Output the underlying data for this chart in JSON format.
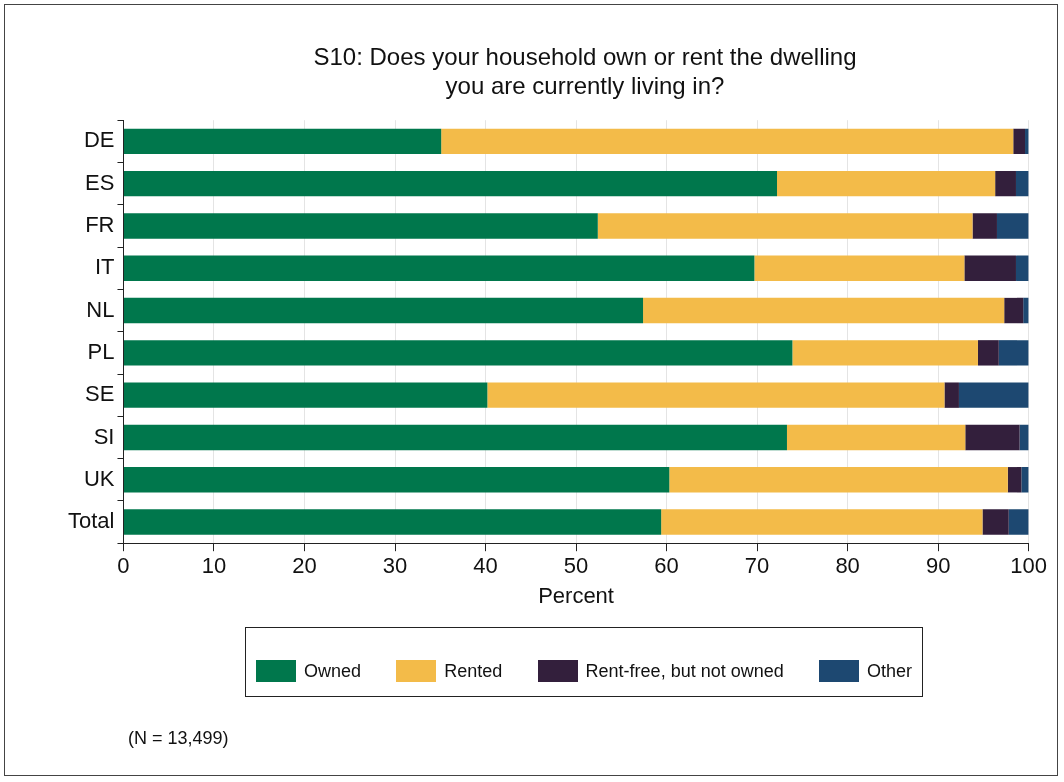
{
  "chart_data": {
    "type": "bar",
    "orientation": "horizontal",
    "stacked": true,
    "title": "S10: Does your household own or rent the dwelling you are currently living in?",
    "xlabel": "Percent",
    "categories": [
      "DE",
      "ES",
      "FR",
      "IT",
      "NL",
      "PL",
      "SE",
      "SI",
      "UK",
      "Total"
    ],
    "series": [
      {
        "name": "Owned",
        "color": "#00774c",
        "values": [
          35.1,
          72.2,
          52.4,
          69.7,
          57.4,
          73.9,
          40.2,
          73.3,
          60.3,
          59.4
        ]
      },
      {
        "name": "Rented",
        "color": "#f3bb49",
        "values": [
          63.2,
          24.1,
          41.4,
          23.2,
          39.9,
          20.5,
          50.5,
          19.7,
          37.4,
          35.5
        ]
      },
      {
        "name": "Rent-free, but not owned",
        "color": "#331f3c",
        "values": [
          1.3,
          2.3,
          2.7,
          5.7,
          2.1,
          2.3,
          1.6,
          6.0,
          1.5,
          2.9
        ]
      },
      {
        "name": "Other",
        "color": "#1d4871",
        "values": [
          0.4,
          1.4,
          3.5,
          1.4,
          0.6,
          3.3,
          7.7,
          1.0,
          0.8,
          2.2
        ]
      }
    ],
    "xlim": [
      0,
      100
    ],
    "xticks": [
      0,
      10,
      20,
      30,
      40,
      50,
      60,
      70,
      80,
      90,
      100
    ],
    "grid": "x",
    "legend": "bottom",
    "annotations": [
      "(N =  13,499)"
    ]
  }
}
